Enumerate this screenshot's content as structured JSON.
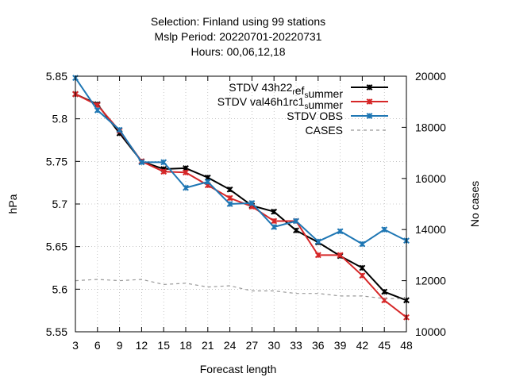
{
  "chart_data": {
    "type": "line",
    "title_lines": [
      "Selection: Finland using    99 stations",
      "Mslp   Period: 20220701-20220731",
      "Hours:  00,06,12,18"
    ],
    "xlabel": "Forecast length",
    "ylabel": "hPa",
    "y2label": "No cases",
    "x": [
      3,
      6,
      9,
      12,
      15,
      18,
      21,
      24,
      27,
      30,
      33,
      36,
      39,
      42,
      45,
      48
    ],
    "ylim": [
      5.55,
      5.85
    ],
    "y2lim": [
      10000,
      20000
    ],
    "yticks": [
      "5.55",
      "5.6",
      "5.65",
      "5.7",
      "5.75",
      "5.8",
      "5.85"
    ],
    "y2ticks": [
      "10000",
      "12000",
      "14000",
      "16000",
      "18000",
      "20000"
    ],
    "legend_position": "top-right",
    "grid": true,
    "series": [
      {
        "label_main": "STDV 43h22",
        "label_sub1": "r",
        "label_mid": "ef",
        "label_sub2": "s",
        "label_tail": "ummer",
        "color": "#000000",
        "marker": "x",
        "dash": false,
        "axis": "y1",
        "values": [
          5.829,
          5.817,
          5.783,
          5.75,
          5.741,
          5.742,
          5.731,
          5.717,
          5.698,
          5.691,
          5.669,
          5.655,
          5.639,
          5.625,
          5.597,
          5.587
        ]
      },
      {
        "label_main": "STDV val46h1rc1",
        "label_sub1": "",
        "label_mid": "",
        "label_sub2": "s",
        "label_tail": "ummer",
        "color": "#d62728",
        "marker": "x",
        "dash": false,
        "axis": "y1",
        "values": [
          5.829,
          5.816,
          5.786,
          5.75,
          5.738,
          5.737,
          5.722,
          5.707,
          5.697,
          5.68,
          5.68,
          5.64,
          5.64,
          5.616,
          5.587,
          5.567
        ]
      },
      {
        "label_main": "STDV OBS",
        "label_sub1": "",
        "label_mid": "",
        "label_sub2": "",
        "label_tail": "",
        "color": "#1f77b4",
        "marker": "x",
        "dash": false,
        "axis": "y1",
        "values": [
          5.848,
          5.81,
          5.787,
          5.749,
          5.749,
          5.719,
          5.726,
          5.7,
          5.701,
          5.673,
          5.68,
          5.656,
          5.668,
          5.653,
          5.67,
          5.657
        ]
      },
      {
        "label_main": "CASES",
        "label_sub1": "",
        "label_mid": "",
        "label_sub2": "",
        "label_tail": "",
        "color": "#999999",
        "marker": "none",
        "dash": true,
        "axis": "y2",
        "values": [
          12000,
          12050,
          12000,
          12050,
          11850,
          11900,
          11750,
          11800,
          11600,
          11600,
          11500,
          11500,
          11400,
          11400,
          11300,
          11300
        ]
      }
    ]
  }
}
